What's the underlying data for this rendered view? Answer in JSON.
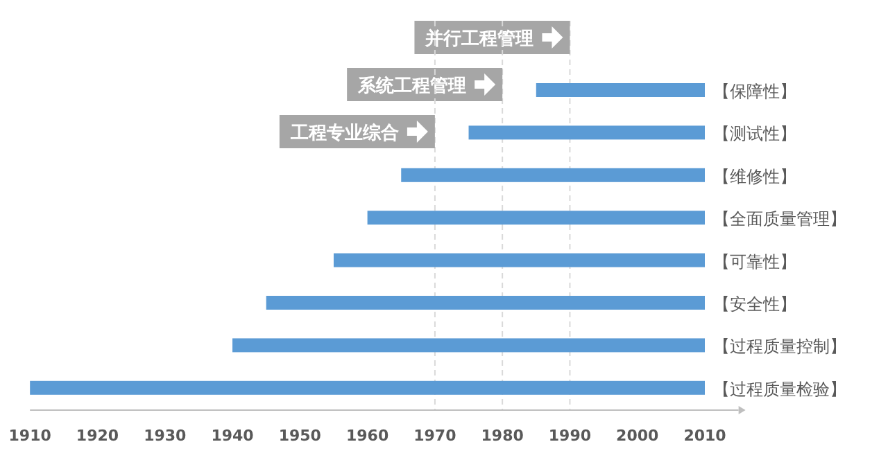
{
  "chart_data": {
    "type": "bar",
    "orientation": "horizontal",
    "categories": [
      "【保障性】",
      "【测试性】",
      "【维修性】",
      "【全面质量管理】",
      "【可靠性】",
      "【安全性】",
      "【过程质量控制】",
      "【过程质量检验】"
    ],
    "base": [
      1985,
      1975,
      1965,
      1960,
      1955,
      1945,
      1940,
      1910
    ],
    "values": [
      25,
      35,
      45,
      50,
      55,
      65,
      70,
      100
    ],
    "color": "#5b9bd5",
    "xlim": [
      1910,
      2015
    ],
    "xticks": [
      1910,
      1920,
      1930,
      1940,
      1950,
      1960,
      1970,
      1980,
      1990,
      2000,
      2010
    ],
    "ref_lines": [
      {
        "axis": "x",
        "value": 1990,
        "label": "并行工程管理",
        "color": "#d9d9d9",
        "line_style": "dashed"
      },
      {
        "axis": "x",
        "value": 1980,
        "label": "系统工程管理",
        "color": "#d9d9d9",
        "line_style": "dashed"
      },
      {
        "axis": "x",
        "value": 1970,
        "label": "工程专业综合",
        "color": "#d9d9d9",
        "line_style": "dashed"
      }
    ],
    "grid": false
  }
}
